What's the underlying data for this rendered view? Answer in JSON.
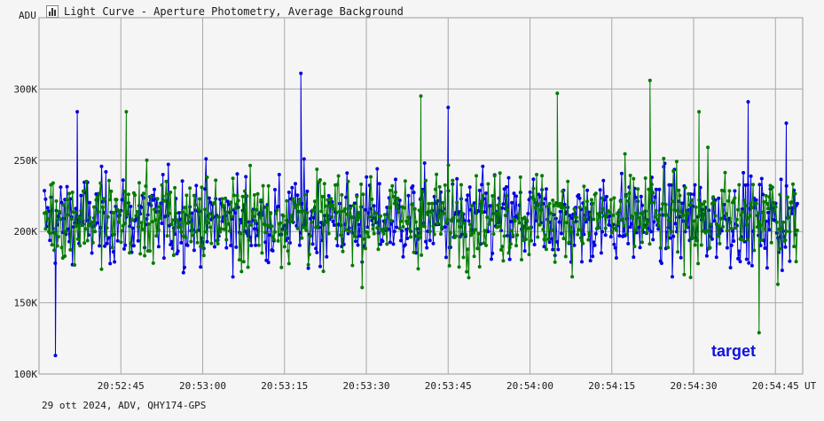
{
  "window": {
    "title": "Light Curve - Aperture Photometry, Average Background",
    "icon": "chart-icon"
  },
  "footer": {
    "info": "29 ott 2024, ADV, QHY174-GPS"
  },
  "chart_data": {
    "type": "line",
    "title": "Light Curve - Aperture Photometry, Average Background",
    "ylabel": "ADU",
    "xlabel": "UT",
    "ylim": [
      100000,
      350000
    ],
    "y_ticks": [
      {
        "value": 100000,
        "label": "100K"
      },
      {
        "value": 150000,
        "label": "150K"
      },
      {
        "value": 200000,
        "label": "200K"
      },
      {
        "value": 250000,
        "label": "250K"
      },
      {
        "value": 300000,
        "label": "300K"
      }
    ],
    "x_range": [
      "20:52:30",
      "20:54:50"
    ],
    "x_ticks": [
      "20:52:45",
      "20:53:00",
      "20:53:15",
      "20:53:30",
      "20:53:45",
      "20:54:00",
      "20:54:15",
      "20:54:30",
      "20:54:45"
    ],
    "grid": true,
    "annotation": "target",
    "series": [
      {
        "color": "#0000e0",
        "mean": 208000,
        "notable_points": [
          {
            "x": "20:52:33",
            "y": 113000
          },
          {
            "x": "20:52:37",
            "y": 284000
          },
          {
            "x": "20:53:18",
            "y": 311000
          },
          {
            "x": "20:53:45",
            "y": 287000
          },
          {
            "x": "20:54:40",
            "y": 291000
          },
          {
            "x": "20:54:47",
            "y": 276000
          }
        ]
      },
      {
        "color": "#007a00",
        "mean": 210000,
        "notable_points": [
          {
            "x": "20:52:46",
            "y": 284000
          },
          {
            "x": "20:53:40",
            "y": 295000
          },
          {
            "x": "20:54:05",
            "y": 297000
          },
          {
            "x": "20:54:22",
            "y": 306000
          },
          {
            "x": "20:54:31",
            "y": 284000
          },
          {
            "x": "20:54:42",
            "y": 129000
          }
        ]
      }
    ]
  }
}
